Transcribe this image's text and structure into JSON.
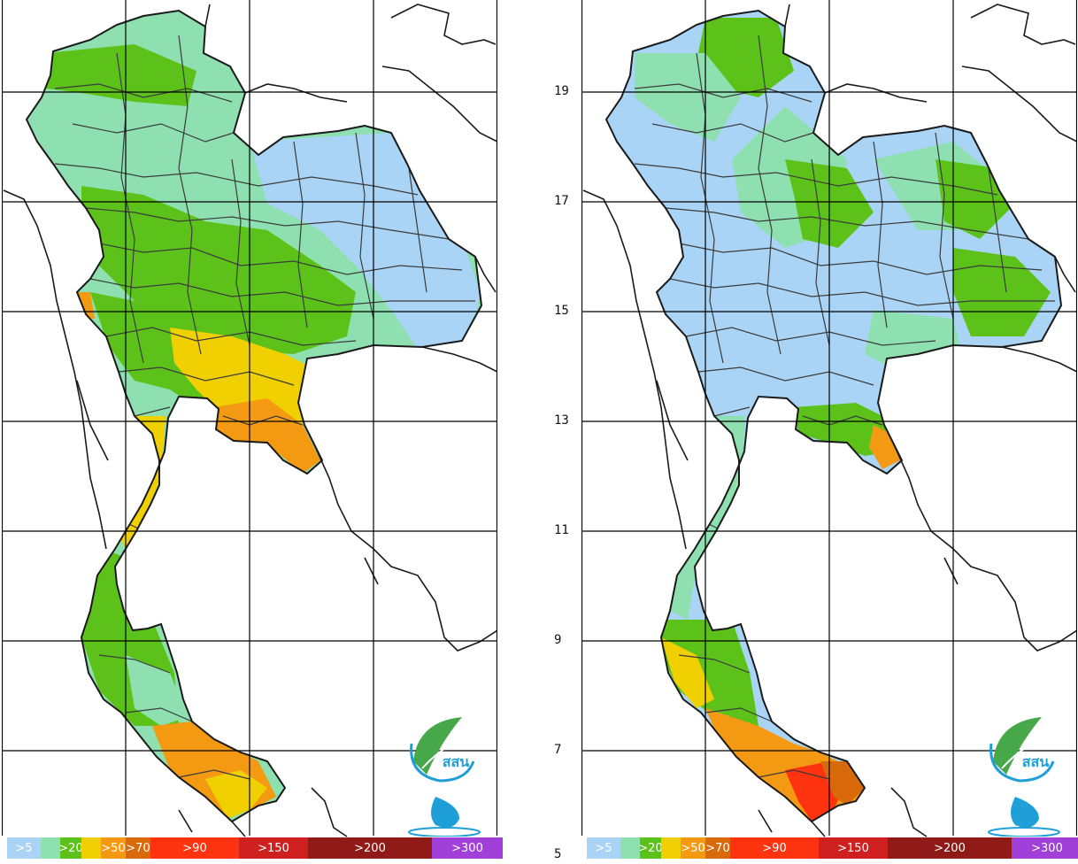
{
  "maps": [
    {
      "id": "left"
    },
    {
      "id": "right"
    }
  ],
  "latitude_labels": [
    "19",
    "17",
    "15",
    "13",
    "11",
    "9",
    "7",
    "5"
  ],
  "legend": {
    "items": [
      {
        "label": ">5",
        "color": "#a9d4f5"
      },
      {
        "label": "",
        "color": "#8fe0b0"
      },
      {
        "label": ">20",
        "color": "#5cc21a"
      },
      {
        "label": "",
        "color": "#f0d000"
      },
      {
        "label": ">50",
        "color": "#f49a12"
      },
      {
        "label": ">70",
        "color": "#d86a0c"
      },
      {
        "label": ">90",
        "color": "#ff3310"
      },
      {
        "label": ">150",
        "color": "#cf2020"
      },
      {
        "label": ">200",
        "color": "#8f1a18"
      },
      {
        "label": ">300",
        "color": "#a040d8"
      }
    ]
  },
  "logo": {
    "text": "สสน"
  },
  "colors": {
    "grid": "#000000",
    "border": "#1a1a1a",
    "province_line": "#3b3b3b",
    "blue": "#a9d4f5",
    "mint": "#8fe0b0",
    "green": "#5cc21a",
    "yellow": "#f0d000",
    "orange": "#f49a12",
    "dark_orange": "#d86a0c",
    "red": "#ff3310",
    "logo_green": "#46a848",
    "logo_blue": "#1f9fd8"
  }
}
